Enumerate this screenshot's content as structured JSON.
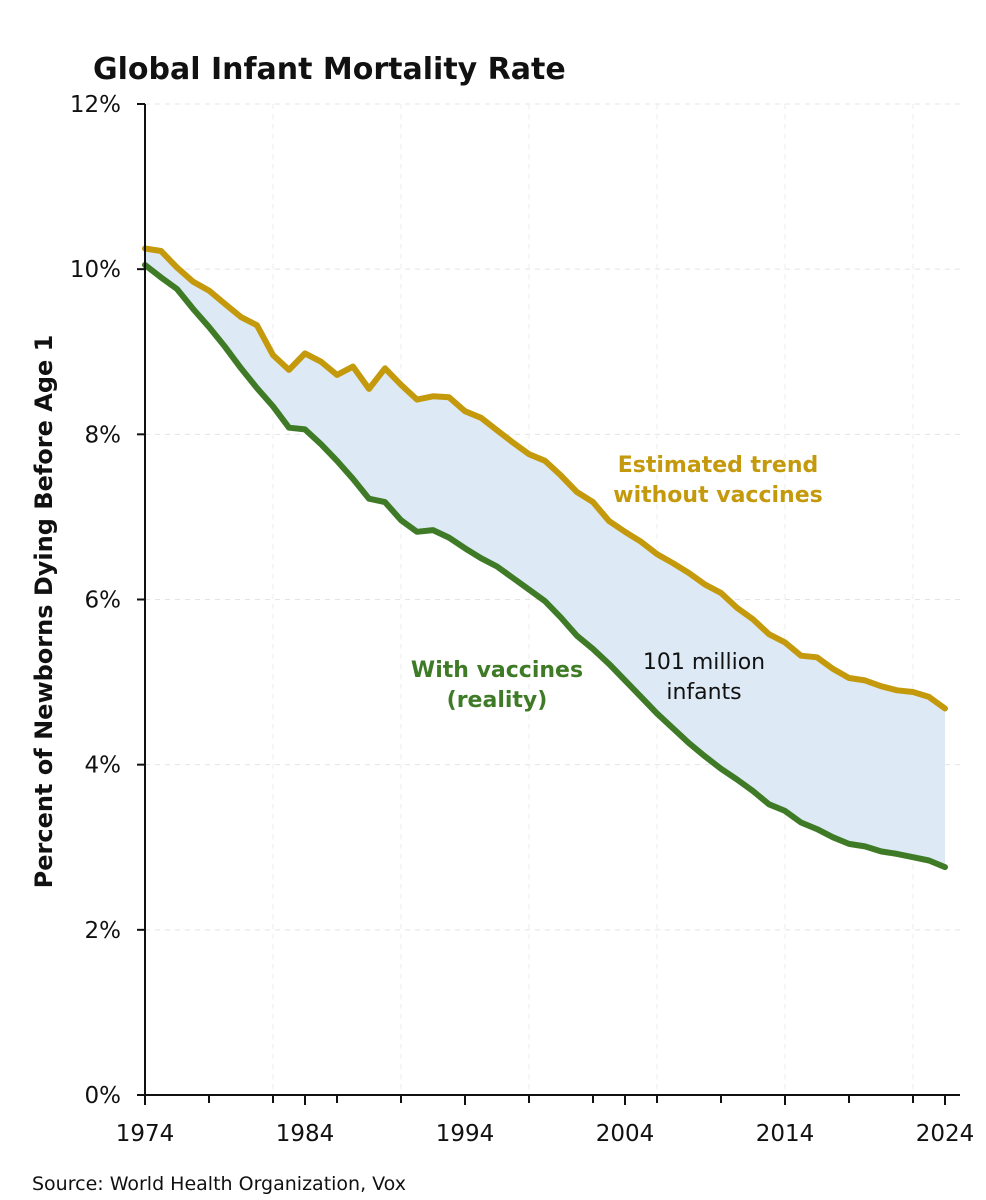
{
  "chart_data": {
    "type": "line",
    "title": "Global Infant Mortality Rate",
    "xlabel": "",
    "ylabel": "Percent of Newborns Dying Before Age 1",
    "xlim": [
      1974,
      2024
    ],
    "ylim": [
      0,
      12
    ],
    "x_ticks": [
      "1974",
      "1984",
      "1994",
      "2004",
      "2014",
      "2024"
    ],
    "y_ticks": [
      "0%",
      "2%",
      "4%",
      "6%",
      "8%",
      "10%",
      "12%"
    ],
    "grid": true,
    "x": [
      1974,
      1975,
      1976,
      1977,
      1978,
      1979,
      1980,
      1981,
      1982,
      1983,
      1984,
      1985,
      1986,
      1987,
      1988,
      1989,
      1990,
      1991,
      1992,
      1993,
      1994,
      1995,
      1996,
      1997,
      1998,
      1999,
      2000,
      2001,
      2002,
      2003,
      2004,
      2005,
      2006,
      2007,
      2008,
      2009,
      2010,
      2011,
      2012,
      2013,
      2014,
      2015,
      2016,
      2017,
      2018,
      2019,
      2020,
      2021,
      2022,
      2023,
      2024
    ],
    "series": [
      {
        "name": "Estimated trend without vaccines",
        "color": "#c49a0c",
        "values": [
          10.25,
          10.22,
          10.02,
          9.85,
          9.74,
          9.58,
          9.42,
          9.32,
          8.96,
          8.78,
          8.98,
          8.88,
          8.72,
          8.82,
          8.55,
          8.8,
          8.6,
          8.42,
          8.46,
          8.45,
          8.28,
          8.2,
          8.05,
          7.9,
          7.76,
          7.68,
          7.5,
          7.3,
          7.18,
          6.95,
          6.82,
          6.7,
          6.55,
          6.44,
          6.32,
          6.18,
          6.08,
          5.9,
          5.76,
          5.58,
          5.48,
          5.32,
          5.3,
          5.16,
          5.05,
          5.02,
          4.95,
          4.9,
          4.88,
          4.82,
          4.68
        ]
      },
      {
        "name": "With vaccines (reality)",
        "color": "#3f7b26",
        "values": [
          10.05,
          9.9,
          9.76,
          9.52,
          9.3,
          9.06,
          8.8,
          8.56,
          8.34,
          8.08,
          8.06,
          7.88,
          7.68,
          7.46,
          7.22,
          7.18,
          6.96,
          6.82,
          6.84,
          6.75,
          6.62,
          6.5,
          6.4,
          6.26,
          6.12,
          5.98,
          5.78,
          5.56,
          5.4,
          5.22,
          5.02,
          4.82,
          4.62,
          4.44,
          4.26,
          4.1,
          3.95,
          3.82,
          3.68,
          3.52,
          3.44,
          3.3,
          3.22,
          3.12,
          3.04,
          3.01,
          2.95,
          2.92,
          2.88,
          2.84,
          2.76
        ]
      }
    ],
    "fill_between_color": "#dde9f5",
    "annotations": {
      "gold_line1": "Estimated trend",
      "gold_line2": "without vaccines",
      "green_line1": "With vaccines",
      "green_line2": "(reality)",
      "fill_line1": "101 million",
      "fill_line2": "infants"
    }
  },
  "source": "Source: World Health Organization, Vox"
}
